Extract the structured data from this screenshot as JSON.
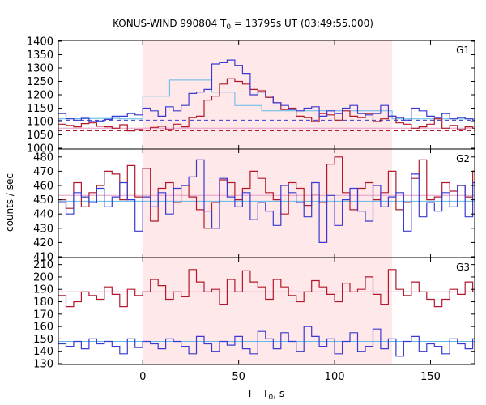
{
  "chart_data": {
    "type": "line",
    "title": "KONUS-WIND 990804 T",
    "title_sub": "0",
    "title_rest": " = 13795s UT (03:49:55.000)",
    "xlabel": "T - T",
    "xlabel_sub": "0",
    "xlabel_rest": ", s",
    "ylabel": "counts / sec",
    "xlim": [
      -44,
      173
    ],
    "x_ticks": [
      0,
      50,
      100,
      150
    ],
    "x_tick_labels": [
      "0",
      "50",
      "100",
      "150"
    ],
    "shaded_interval": [
      0,
      130
    ],
    "colors": {
      "red": "#b2182b",
      "blue": "#3a3ad0",
      "cyan": "#5fb8e8",
      "pink": "#e79cc6",
      "shade": "#ffe8ea"
    },
    "panels": [
      {
        "label": "G1",
        "ylim": [
          1000,
          1400
        ],
        "y_ticks": [
          1000,
          1050,
          1100,
          1150,
          1200,
          1250,
          1300,
          1350,
          1400
        ],
        "y_tick_labels": [
          "1000",
          "1050",
          "1100",
          "1150",
          "1200",
          "1250",
          "1300",
          "1350",
          "1400"
        ],
        "bin_start": -44,
        "bin_width": 4,
        "series": [
          {
            "color": "red",
            "values": [
              1090,
              1085,
              1080,
              1092,
              1095,
              1082,
              1080,
              1075,
              1088,
              1065,
              1070,
              1068,
              1078,
              1082,
              1070,
              1090,
              1080,
              1115,
              1120,
              1180,
              1195,
              1240,
              1260,
              1250,
              1240,
              1220,
              1215,
              1190,
              1170,
              1145,
              1150,
              1120,
              1115,
              1100,
              1130,
              1125,
              1105,
              1140,
              1120,
              1115,
              1130,
              1100,
              1110,
              1120,
              1095,
              1090,
              1075,
              1080,
              1090,
              1110,
              1075,
              1085,
              1070,
              1080,
              1075,
              1070
            ],
            "dashed_level": 1065
          },
          {
            "color": "blue",
            "values": [
              1130,
              1110,
              1105,
              1112,
              1100,
              1102,
              1108,
              1120,
              1120,
              1130,
              1125,
              1150,
              1140,
              1120,
              1155,
              1140,
              1160,
              1205,
              1210,
              1220,
              1315,
              1320,
              1330,
              1310,
              1280,
              1200,
              1210,
              1195,
              1170,
              1160,
              1145,
              1140,
              1150,
              1155,
              1120,
              1140,
              1130,
              1150,
              1160,
              1130,
              1125,
              1130,
              1160,
              1120,
              1115,
              1105,
              1150,
              1140,
              1120,
              1115,
              1130,
              1110,
              1115,
              1110,
              1105,
              1100
            ],
            "dashed_level": 1105
          }
        ],
        "fit_lines": [
          {
            "color": "cyan",
            "points": [
              [
                -44,
                1110
              ],
              [
                -12,
                1112
              ],
              [
                -12,
                1110
              ],
              [
                0,
                1110
              ],
              [
                0,
                1195
              ],
              [
                14,
                1195
              ],
              [
                14,
                1255
              ],
              [
                36,
                1255
              ],
              [
                36,
                1210
              ],
              [
                48,
                1210
              ],
              [
                48,
                1160
              ],
              [
                62,
                1160
              ],
              [
                62,
                1140
              ],
              [
                130,
                1140
              ],
              [
                130,
                1110
              ],
              [
                173,
                1110
              ]
            ]
          },
          {
            "color": "pink",
            "points": [
              [
                -44,
                1075
              ],
              [
                173,
                1075
              ]
            ]
          }
        ]
      },
      {
        "label": "G2",
        "ylim": [
          410,
          485
        ],
        "y_ticks": [
          410,
          420,
          430,
          440,
          450,
          460,
          470,
          480
        ],
        "y_tick_labels": [
          "410",
          "420",
          "430",
          "440",
          "450",
          "460",
          "470",
          "480"
        ],
        "bin_start": -44,
        "bin_width": 4,
        "series": [
          {
            "color": "red",
            "values": [
              450,
              444,
              462,
              445,
              455,
              460,
              470,
              468,
              450,
              474,
              452,
              472,
              435,
              458,
              462,
              448,
              460,
              452,
              443,
              430,
              448,
              464,
              462,
              450,
              458,
              470,
              465,
              455,
              450,
              440,
              462,
              458,
              446,
              454,
              448,
              475,
              480,
              455,
              443,
              458,
              462,
              450,
              455,
              470,
              443,
              448,
              465,
              478,
              450,
              452,
              462,
              456,
              460,
              452,
              470,
              450
            ],
            "level": 452
          },
          {
            "color": "blue",
            "values": [
              448,
              440,
              455,
              452,
              448,
              458,
              445,
              452,
              462,
              450,
              428,
              452,
              445,
              455,
              440,
              458,
              460,
              466,
              478,
              442,
              430,
              465,
              452,
              445,
              455,
              436,
              448,
              442,
              432,
              460,
              455,
              448,
              438,
              462,
              420,
              453,
              432,
              450,
              458,
              442,
              435,
              460,
              445,
              452,
              455,
              428,
              468,
              438,
              448,
              442,
              455,
              445,
              460,
              438,
              462,
              442
            ],
            "level": 450
          }
        ],
        "fit_lines": [
          {
            "color": "pink",
            "points": [
              [
                -44,
                453
              ],
              [
                173,
                453
              ]
            ]
          },
          {
            "color": "cyan",
            "points": [
              [
                -44,
                449
              ],
              [
                173,
                449
              ]
            ]
          }
        ]
      },
      {
        "label": "G3",
        "ylim": [
          130,
          215
        ],
        "y_ticks": [
          130,
          140,
          150,
          160,
          170,
          180,
          190,
          200,
          210
        ],
        "y_tick_labels": [
          "130",
          "140",
          "150",
          "160",
          "170",
          "180",
          "190",
          "200",
          "210"
        ],
        "bin_start": -44,
        "bin_width": 4,
        "series": [
          {
            "color": "red",
            "values": [
              185,
              176,
              180,
              188,
              185,
              182,
              192,
              186,
              176,
              190,
              185,
              188,
              198,
              193,
              182,
              188,
              184,
              206,
              196,
              188,
              190,
              178,
              198,
              188,
              205,
              196,
              192,
              182,
              198,
              192,
              185,
              180,
              188,
              197,
              192,
              186,
              180,
              195,
              188,
              190,
              200,
              186,
              178,
              206,
              190,
              185,
              196,
              188,
              182,
              176,
              182,
              190,
              186,
              196,
              188,
              180
            ],
            "level": 188
          },
          {
            "color": "blue",
            "values": [
              146,
              144,
              148,
              142,
              150,
              146,
              148,
              144,
              138,
              150,
              143,
              148,
              146,
              142,
              150,
              148,
              144,
              138,
              152,
              146,
              140,
              148,
              145,
              152,
              142,
              138,
              156,
              150,
              142,
              155,
              148,
              140,
              160,
              152,
              144,
              150,
              138,
              148,
              155,
              140,
              144,
              158,
              142,
              150,
              136,
              148,
              152,
              140,
              146,
              144,
              138,
              150,
              146,
              142,
              150,
              140
            ],
            "level": 147
          }
        ],
        "fit_lines": [
          {
            "color": "pink",
            "points": [
              [
                -44,
                188
              ],
              [
                173,
                188
              ]
            ]
          },
          {
            "color": "cyan",
            "points": [
              [
                -44,
                148
              ],
              [
                173,
                148
              ]
            ]
          }
        ]
      }
    ]
  }
}
